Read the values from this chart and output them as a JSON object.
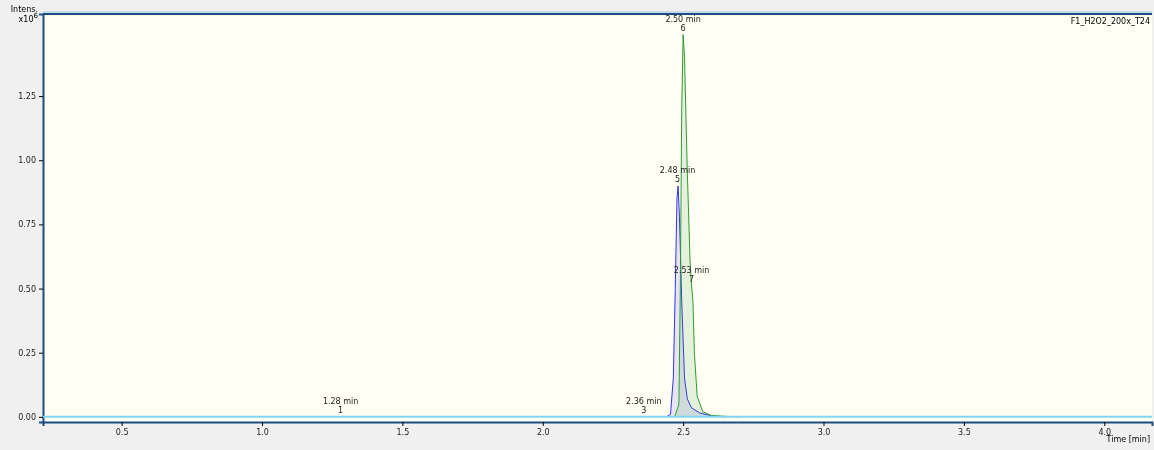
{
  "chart_data": {
    "type": "area",
    "title": "F1_H2O2_200x_T24",
    "xlabel": "Time [min]",
    "ylabel": "Intens. x10$^{6}$",
    "xlim": [
      0.22,
      4.17
    ],
    "ylim": [
      -0.02,
      1.57
    ],
    "xticks": [
      {
        "value": 0.5,
        "label": "0.5"
      },
      {
        "value": 1,
        "label": "1.0"
      },
      {
        "value": 1.5,
        "label": "1.5"
      },
      {
        "value": 2,
        "label": "2.0"
      },
      {
        "value": 2.5,
        "label": "2.5"
      },
      {
        "value": 3,
        "label": "3.0"
      },
      {
        "value": 3.5,
        "label": "3.5"
      },
      {
        "value": 4,
        "label": "4.0"
      }
    ],
    "yticks": [
      {
        "value": 0,
        "label": "0.00"
      },
      {
        "value": 0.25,
        "label": "0.25"
      },
      {
        "value": 0.5,
        "label": "0.50"
      },
      {
        "value": 0.75,
        "label": "0.75"
      },
      {
        "value": 1,
        "label": "1.00"
      },
      {
        "value": 1.25,
        "label": "1.25"
      }
    ],
    "grid": false,
    "series": [
      {
        "color": "#3333ee",
        "x": [
          2.44,
          2.455,
          2.465,
          2.472,
          2.478,
          2.482,
          2.487,
          2.495,
          2.505,
          2.515,
          2.53,
          2.56,
          2.6,
          2.65
        ],
        "values": [
          0,
          0.01,
          0.15,
          0.5,
          0.85,
          0.9,
          0.78,
          0.45,
          0.15,
          0.07,
          0.035,
          0.015,
          0.004,
          0
        ]
      },
      {
        "color": "#339933",
        "x": [
          2.47,
          2.485,
          2.49,
          2.495,
          2.5,
          2.505,
          2.515,
          2.525,
          2.53,
          2.535,
          2.54,
          2.55,
          2.57,
          2.6,
          2.65,
          2.7
        ],
        "values": [
          0,
          0.05,
          0.5,
          1.2,
          1.49,
          1.4,
          0.95,
          0.6,
          0.51,
          0.45,
          0.25,
          0.08,
          0.02,
          0.006,
          0.002,
          0
        ]
      },
      {
        "type": "line",
        "color": "#7fd6ee",
        "x": [
          0.22,
          1,
          2,
          2.4,
          3,
          4,
          4.17
        ],
        "values": [
          0,
          0,
          0,
          0,
          0,
          0,
          0
        ]
      }
    ],
    "annotations": [
      {
        "text": "1.28 min\n1",
        "x": 1.28,
        "y": 0
      },
      {
        "text": "2.36 min\n3",
        "x": 2.36,
        "y": 0
      },
      {
        "text": "2.48 min\n5",
        "x": 2.48,
        "y": 0.9
      },
      {
        "text": "2.50 min\n6",
        "x": 2.5,
        "y": 1.49
      },
      {
        "text": "2.53 min\n7",
        "x": 2.53,
        "y": 0.51
      }
    ]
  }
}
